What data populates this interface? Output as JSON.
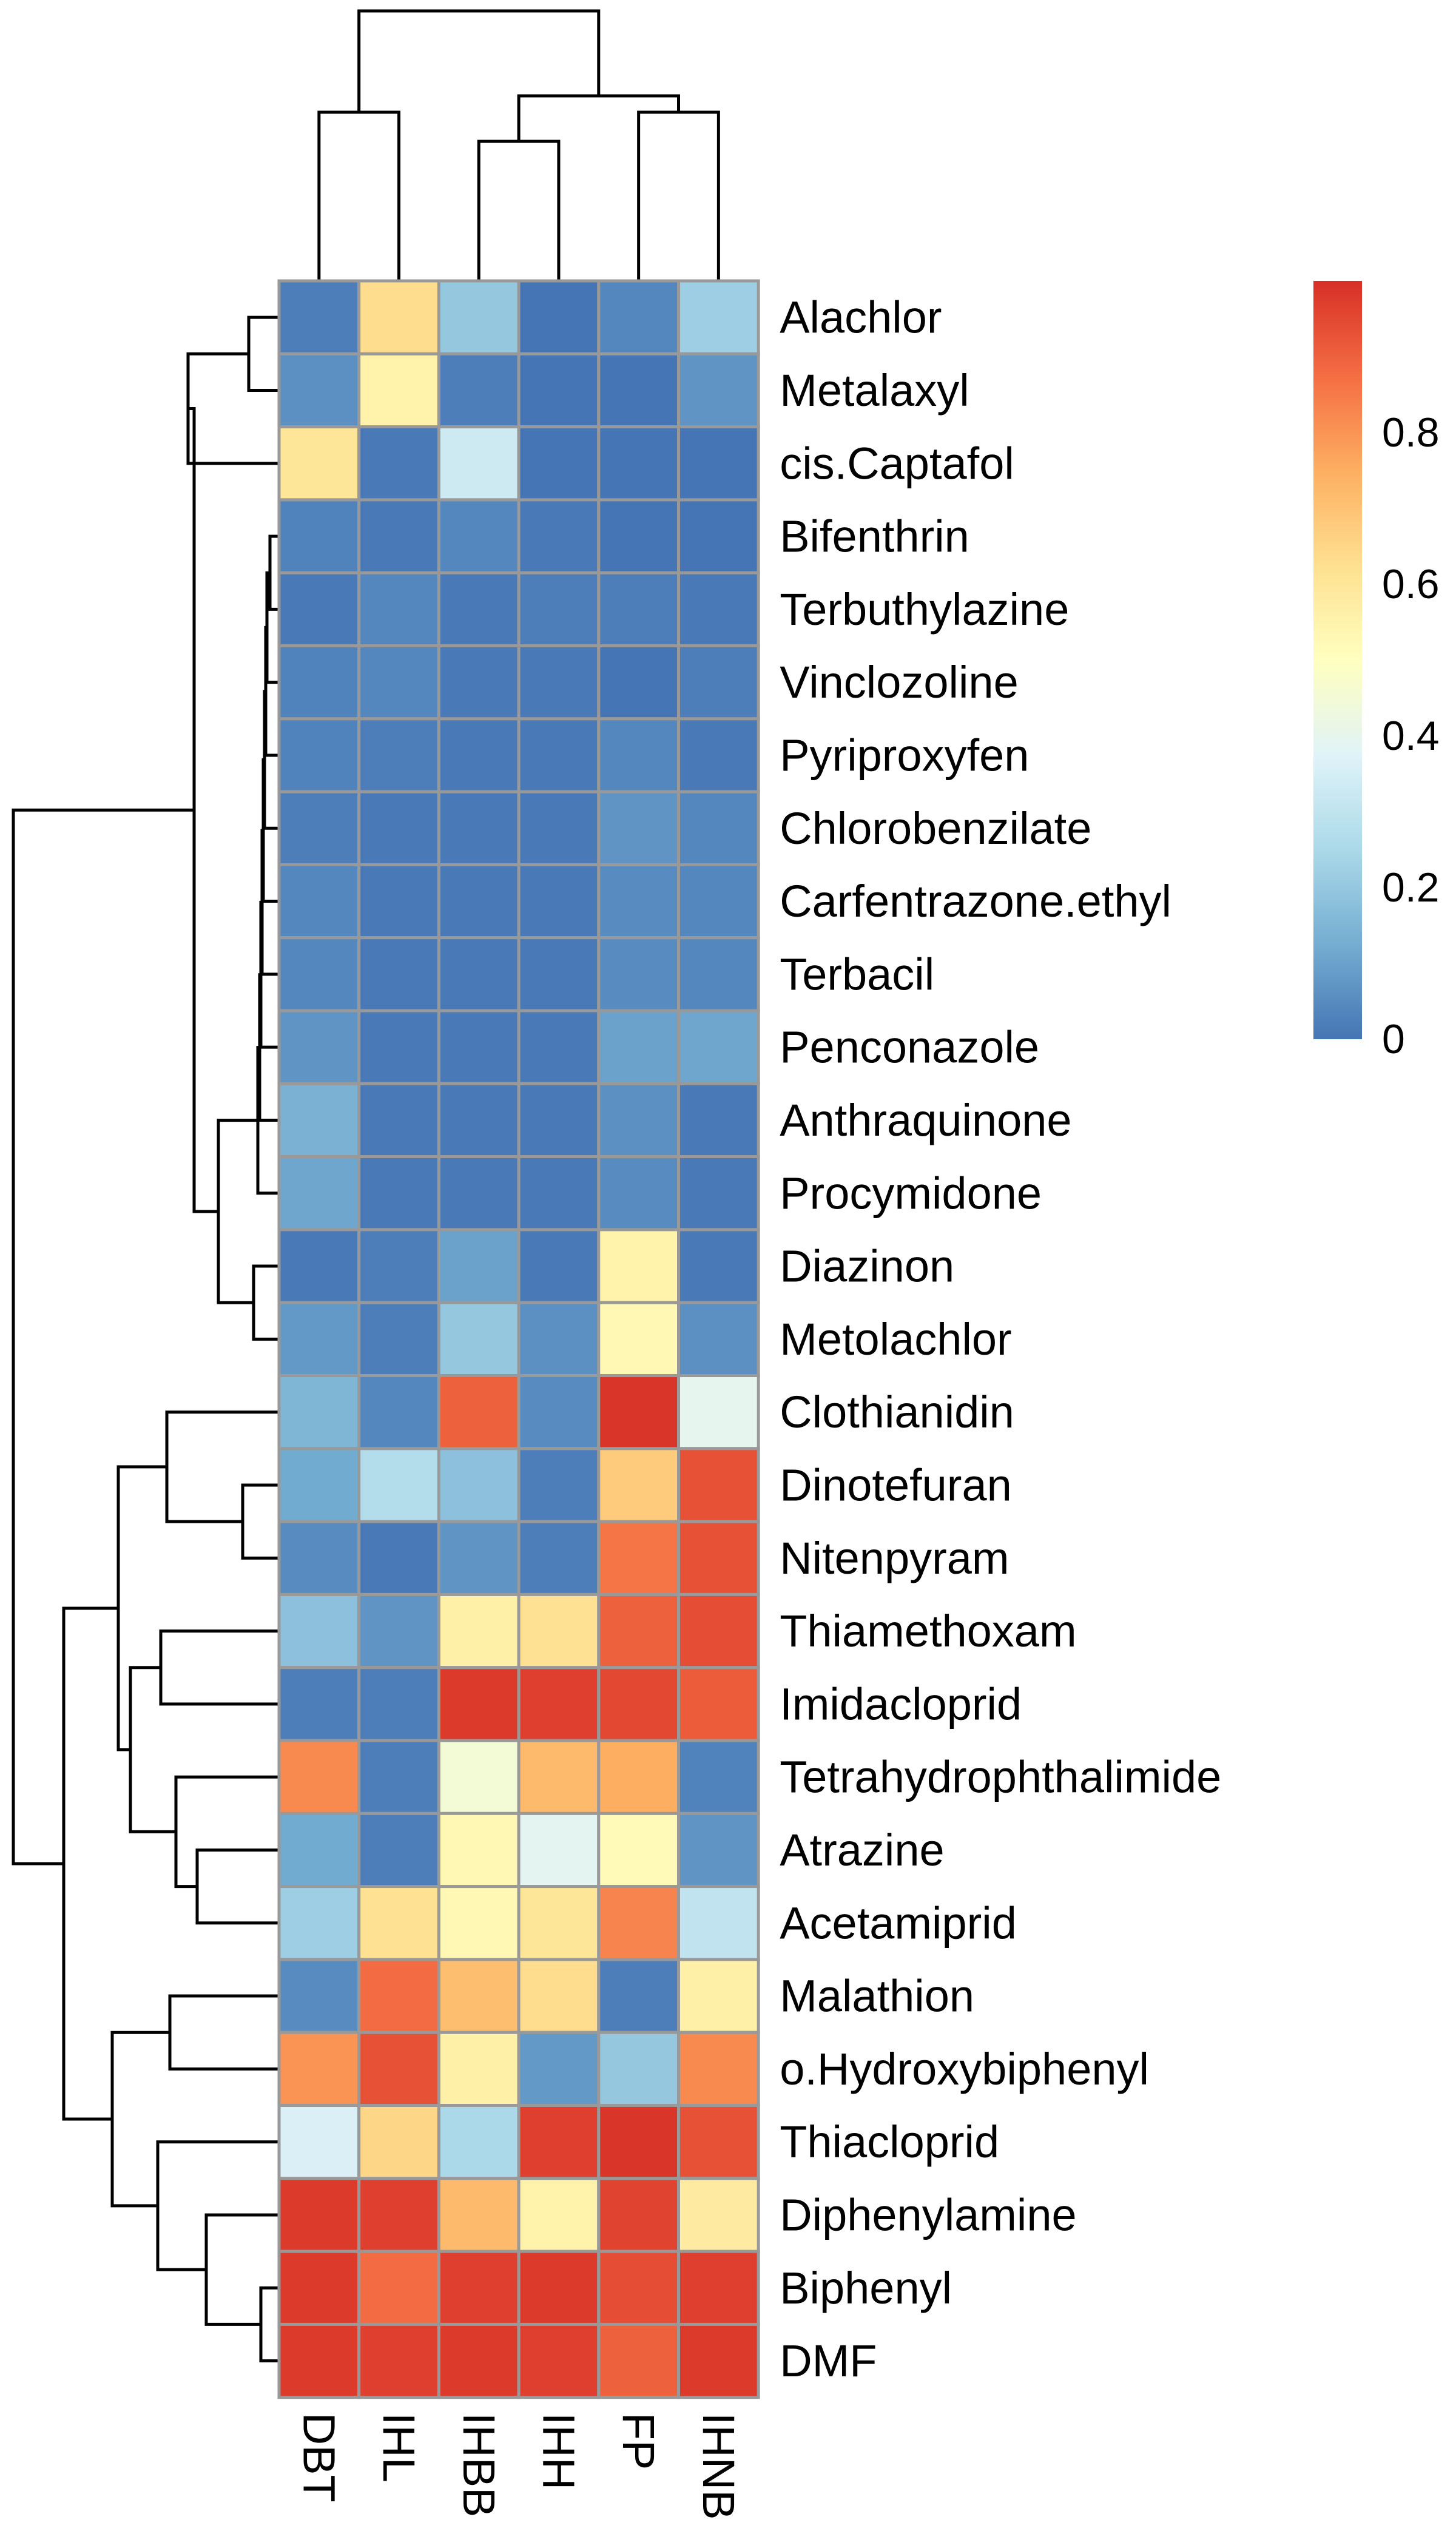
{
  "chart_data": {
    "type": "heatmap",
    "title": "",
    "xlabel": "",
    "ylabel": "",
    "columns": [
      "DBT",
      "IHL",
      "IHBB",
      "IHH",
      "FP",
      "IHNB"
    ],
    "rows": [
      "Alachlor",
      "Metalaxyl",
      "cis.Captafol",
      "Bifenthrin",
      "Terbuthylazine",
      "Vinclozoline",
      "Pyriproxyfen",
      "Chlorobenzilate",
      "Carfentrazone.ethyl",
      "Terbacil",
      "Penconazole",
      "Anthraquinone",
      "Procymidone",
      "Diazinon",
      "Metolachlor",
      "Clothianidin",
      "Dinotefuran",
      "Nitenpyram",
      "Thiamethoxam",
      "Imidacloprid",
      "Tetrahydrophthalimide",
      "Atrazine",
      "Acetamiprid",
      "Malathion",
      "o.Hydroxybiphenyl",
      "Thiacloprid",
      "Diphenylamine",
      "Biphenyl",
      "DMF"
    ],
    "values": [
      [
        0.02,
        0.63,
        0.2,
        0.0,
        0.04,
        0.22
      ],
      [
        0.06,
        0.55,
        0.02,
        0.0,
        0.0,
        0.07
      ],
      [
        0.6,
        0.01,
        0.33,
        0.0,
        0.0,
        0.0
      ],
      [
        0.03,
        0.01,
        0.04,
        0.01,
        0.0,
        0.0
      ],
      [
        0.01,
        0.04,
        0.01,
        0.02,
        0.02,
        0.01
      ],
      [
        0.03,
        0.04,
        0.01,
        0.01,
        0.0,
        0.02
      ],
      [
        0.03,
        0.02,
        0.01,
        0.01,
        0.04,
        0.01
      ],
      [
        0.02,
        0.01,
        0.01,
        0.01,
        0.07,
        0.04
      ],
      [
        0.04,
        0.01,
        0.01,
        0.01,
        0.05,
        0.04
      ],
      [
        0.04,
        0.01,
        0.01,
        0.01,
        0.05,
        0.04
      ],
      [
        0.07,
        0.01,
        0.01,
        0.01,
        0.1,
        0.11
      ],
      [
        0.14,
        0.01,
        0.01,
        0.01,
        0.06,
        0.01
      ],
      [
        0.11,
        0.01,
        0.01,
        0.01,
        0.05,
        0.01
      ],
      [
        0.01,
        0.02,
        0.1,
        0.01,
        0.55,
        0.01
      ],
      [
        0.08,
        0.02,
        0.2,
        0.06,
        0.53,
        0.06
      ],
      [
        0.15,
        0.04,
        0.9,
        0.05,
        0.99,
        0.4
      ],
      [
        0.12,
        0.27,
        0.18,
        0.02,
        0.68,
        0.93
      ],
      [
        0.05,
        0.01,
        0.07,
        0.02,
        0.86,
        0.93
      ],
      [
        0.18,
        0.07,
        0.56,
        0.62,
        0.9,
        0.94
      ],
      [
        0.02,
        0.02,
        0.98,
        0.97,
        0.95,
        0.91
      ],
      [
        0.82,
        0.02,
        0.45,
        0.72,
        0.75,
        0.03
      ],
      [
        0.12,
        0.02,
        0.53,
        0.39,
        0.52,
        0.07
      ],
      [
        0.22,
        0.62,
        0.53,
        0.6,
        0.83,
        0.3
      ],
      [
        0.05,
        0.88,
        0.71,
        0.63,
        0.02,
        0.56
      ],
      [
        0.8,
        0.93,
        0.56,
        0.08,
        0.2,
        0.82
      ],
      [
        0.36,
        0.65,
        0.25,
        0.97,
        0.99,
        0.93
      ],
      [
        0.98,
        0.97,
        0.72,
        0.55,
        0.96,
        0.58
      ],
      [
        0.98,
        0.88,
        0.97,
        0.98,
        0.94,
        0.97
      ],
      [
        0.98,
        0.97,
        0.98,
        0.97,
        0.9,
        0.98
      ]
    ],
    "legend": {
      "position": "right",
      "range": [
        0,
        1
      ],
      "ticks": [
        0,
        0.2,
        0.4,
        0.6,
        0.8
      ],
      "tick_labels": [
        "0",
        "0.2",
        "0.4",
        "0.6",
        "0.8"
      ]
    },
    "colors": {
      "low": "#4575b4",
      "mid": "#ffffbf",
      "high": "#d73027",
      "cell_border": "#999999"
    },
    "row_dendrogram": true,
    "column_dendrogram": true
  }
}
